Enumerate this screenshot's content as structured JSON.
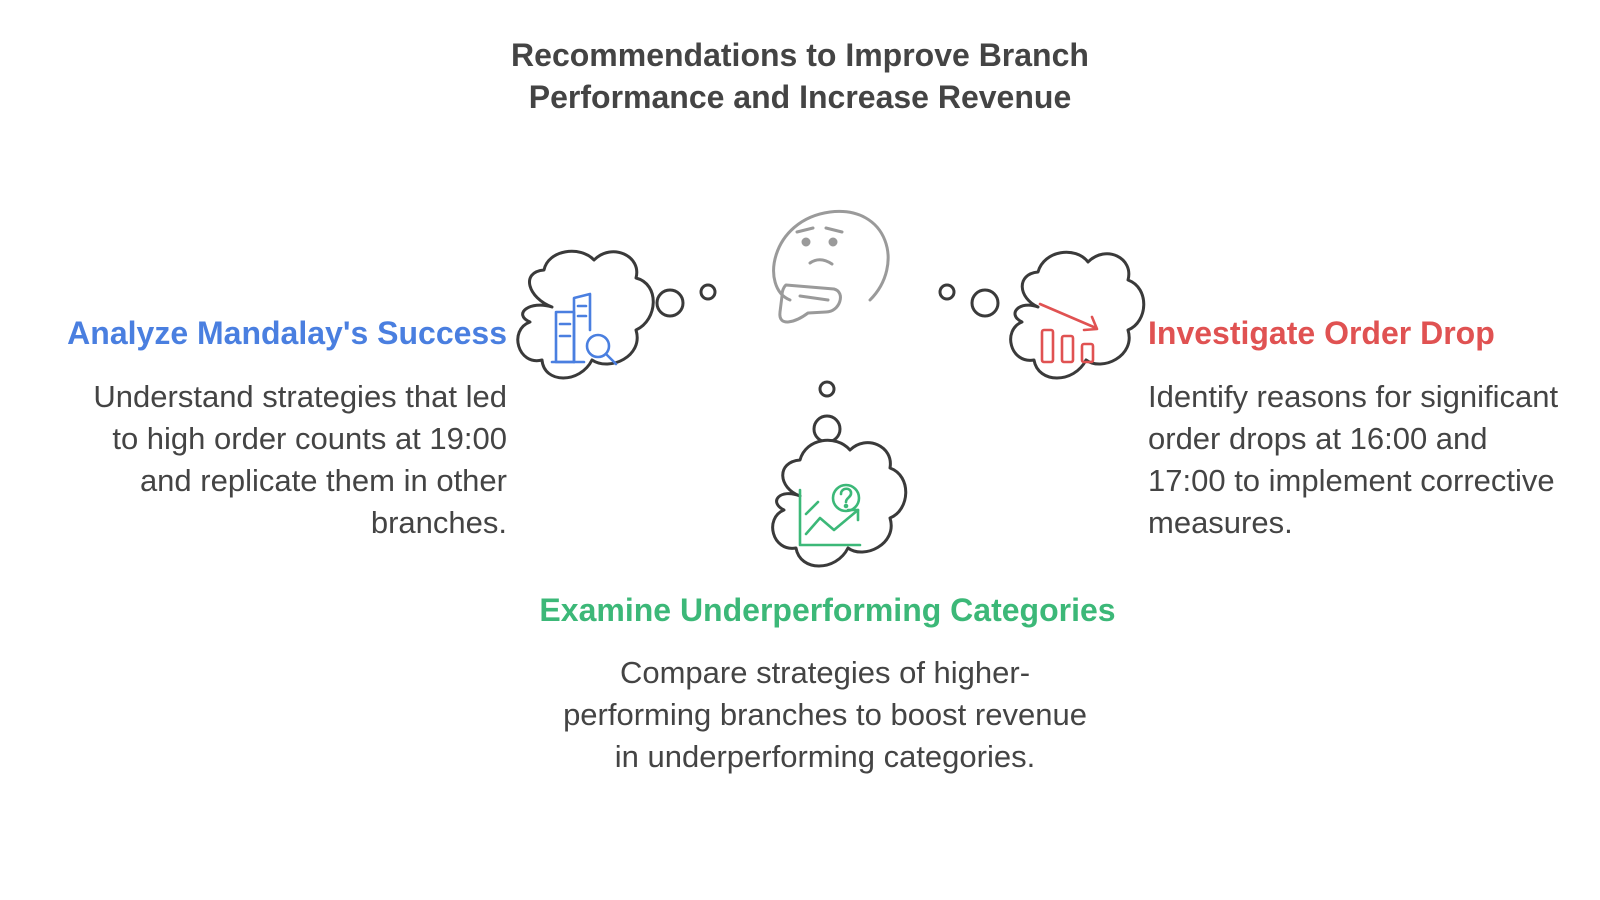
{
  "title": "Recommendations to Improve Branch Performance and Increase Revenue",
  "colors": {
    "text": "#444444",
    "outline": "#3a3a3a",
    "left_accent": "#4a7fe0",
    "right_accent": "#e05252",
    "bottom_accent": "#3cb878"
  },
  "items": {
    "left": {
      "heading": "Analyze Mandalay's Success",
      "description": "Understand strategies that led to high order counts at 19:00 and replicate them in other branches.",
      "icon": "building-search-icon"
    },
    "right": {
      "heading": "Investigate Order Drop",
      "description": "Identify reasons for significant order drops at 16:00 and 17:00 to implement corrective measures.",
      "icon": "declining-bar-chart-icon"
    },
    "bottom": {
      "heading": "Examine Underperforming Categories",
      "description": "Compare strategies of higher-performing branches to boost revenue in underperforming categories.",
      "icon": "chart-question-icon"
    }
  },
  "center_icon": "thinking-face-icon"
}
